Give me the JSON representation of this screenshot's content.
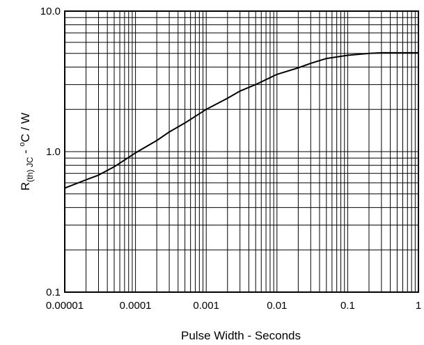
{
  "chart_data": {
    "type": "line",
    "title": "",
    "xlabel": "Pulse Width - Seconds",
    "ylabel": {
      "base": "R",
      "subscript": "(th) JC",
      "mid": " - ",
      "superscript": "o",
      "unit": "C / W"
    },
    "x_scale": "log",
    "y_scale": "log",
    "xlim": [
      1e-05,
      1
    ],
    "ylim": [
      0.1,
      10
    ],
    "grid": true,
    "x_ticks": [
      1e-05,
      0.0001,
      0.001,
      0.01,
      0.1,
      1
    ],
    "x_tick_labels": [
      "0.00001",
      "0.0001",
      "0.001",
      "0.01",
      "0.1",
      "1"
    ],
    "y_ticks": [
      0.1,
      1,
      10
    ],
    "y_tick_labels": [
      "0.1",
      "1.0",
      "10.0"
    ],
    "series": [
      {
        "color": "#000000",
        "x": [
          1e-05,
          2e-05,
          3e-05,
          5e-05,
          0.0001,
          0.0002,
          0.0003,
          0.0005,
          0.001,
          0.002,
          0.003,
          0.005,
          0.01,
          0.02,
          0.03,
          0.05,
          0.1,
          0.2,
          0.3,
          0.5,
          1
        ],
        "y": [
          0.55,
          0.63,
          0.68,
          0.78,
          0.98,
          1.2,
          1.38,
          1.6,
          2.0,
          2.4,
          2.7,
          3.0,
          3.55,
          3.95,
          4.25,
          4.6,
          4.85,
          5.0,
          5.05,
          5.05,
          5.05
        ]
      }
    ]
  }
}
